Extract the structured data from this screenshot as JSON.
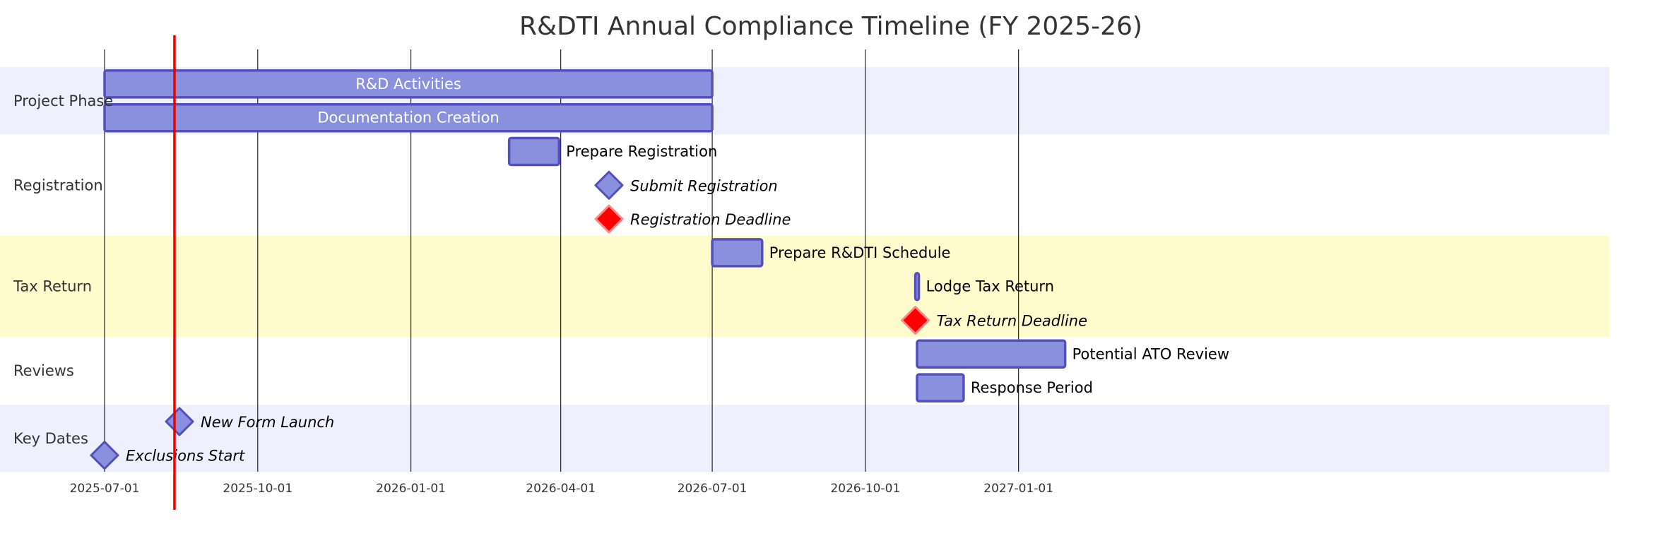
{
  "chart_data": {
    "type": "gantt",
    "title": "R&DTI Annual Compliance Timeline (FY 2025-26)",
    "x_range": [
      "2025-07-01",
      "2027-02-28"
    ],
    "today": "2025-08-12",
    "x_ticks": [
      "2025-07-01",
      "2025-10-01",
      "2026-01-01",
      "2026-04-01",
      "2026-07-01",
      "2026-10-01",
      "2027-01-01"
    ],
    "grid": true,
    "sections": [
      {
        "name": "Project Phase",
        "fill": "#efeffd"
      },
      {
        "name": "Registration",
        "fill": "#ffffff"
      },
      {
        "name": "Tax Return",
        "fill": "#fffbcc"
      },
      {
        "name": "Reviews",
        "fill": "#ffffff"
      },
      {
        "name": "Key Dates",
        "fill": "#efeffd"
      }
    ],
    "tasks": [
      {
        "name": "R&D Activities",
        "section": "Project Phase",
        "kind": "task",
        "start": "2025-07-01",
        "end": "2026-07-01"
      },
      {
        "name": "Documentation Creation",
        "section": "Project Phase",
        "kind": "task",
        "start": "2025-07-01",
        "end": "2026-07-01"
      },
      {
        "name": "Prepare Registration",
        "section": "Registration",
        "kind": "task",
        "start": "2026-03-01",
        "end": "2026-03-31"
      },
      {
        "name": "Submit Registration",
        "section": "Registration",
        "kind": "milestone",
        "start": "2026-04-30",
        "critical": false
      },
      {
        "name": "Registration Deadline",
        "section": "Registration",
        "kind": "milestone",
        "start": "2026-04-30",
        "critical": true
      },
      {
        "name": "Prepare R&DTI Schedule",
        "section": "Tax Return",
        "kind": "task",
        "start": "2026-07-01",
        "end": "2026-07-31"
      },
      {
        "name": "Lodge Tax Return",
        "section": "Tax Return",
        "kind": "task",
        "start": "2026-10-31",
        "end": "2026-11-01"
      },
      {
        "name": "Tax Return Deadline",
        "section": "Tax Return",
        "kind": "milestone",
        "start": "2026-10-31",
        "critical": true
      },
      {
        "name": "Potential ATO Review",
        "section": "Reviews",
        "kind": "task",
        "start": "2026-11-01",
        "end": "2027-01-29"
      },
      {
        "name": "Response Period",
        "section": "Reviews",
        "kind": "task",
        "start": "2026-11-01",
        "end": "2026-11-29"
      },
      {
        "name": "New Form Launch",
        "section": "Key Dates",
        "kind": "milestone",
        "start": "2025-08-15",
        "critical": false
      },
      {
        "name": "Exclusions Start",
        "section": "Key Dates",
        "kind": "milestone",
        "start": "2025-07-01",
        "critical": false
      }
    ],
    "colors": {
      "task_fill": "#8a90dd",
      "task_stroke": "#534fbc",
      "critical_fill": "#ff0000",
      "critical_stroke": "#ff8888",
      "today_line": "#ee0000",
      "grid_line": "#000000"
    }
  }
}
